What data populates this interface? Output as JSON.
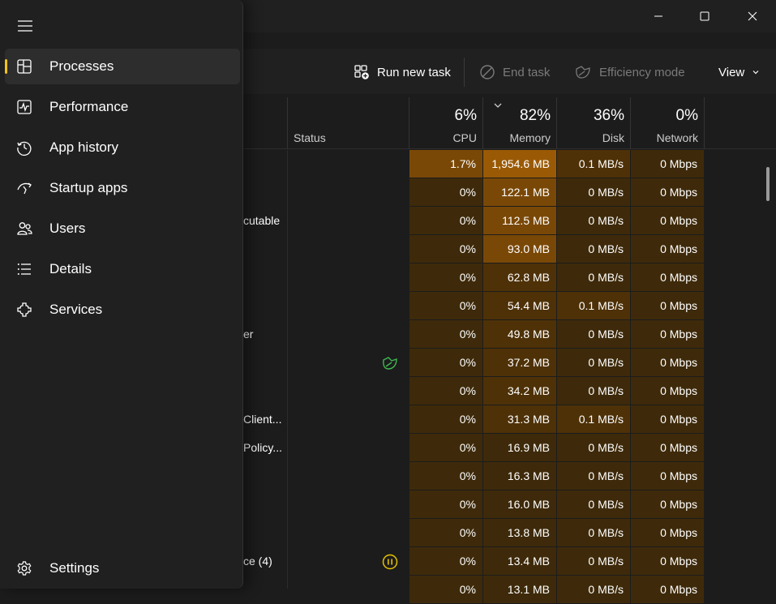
{
  "toolbar": {
    "run_new_task": "Run new task",
    "end_task": "End task",
    "efficiency_mode": "Efficiency mode",
    "view": "View"
  },
  "header": {
    "status": "Status",
    "cpu": {
      "pct": "6%",
      "label": "CPU"
    },
    "memory": {
      "pct": "82%",
      "label": "Memory"
    },
    "disk": {
      "pct": "36%",
      "label": "Disk"
    },
    "network": {
      "pct": "0%",
      "label": "Network"
    }
  },
  "rows": [
    {
      "name": "",
      "cpu": "1.7%",
      "mem": "1,954.6 MB",
      "disk": "0.1 MB/s",
      "net": "0 Mbps",
      "status": ""
    },
    {
      "name": "",
      "cpu": "0%",
      "mem": "122.1 MB",
      "disk": "0 MB/s",
      "net": "0 Mbps",
      "status": ""
    },
    {
      "name": "cutable",
      "cpu": "0%",
      "mem": "112.5 MB",
      "disk": "0 MB/s",
      "net": "0 Mbps",
      "status": ""
    },
    {
      "name": "",
      "cpu": "0%",
      "mem": "93.0 MB",
      "disk": "0 MB/s",
      "net": "0 Mbps",
      "status": ""
    },
    {
      "name": "",
      "cpu": "0%",
      "mem": "62.8 MB",
      "disk": "0 MB/s",
      "net": "0 Mbps",
      "status": ""
    },
    {
      "name": "",
      "cpu": "0%",
      "mem": "54.4 MB",
      "disk": "0.1 MB/s",
      "net": "0 Mbps",
      "status": ""
    },
    {
      "name": "er",
      "cpu": "0%",
      "mem": "49.8 MB",
      "disk": "0 MB/s",
      "net": "0 Mbps",
      "status": ""
    },
    {
      "name": "",
      "cpu": "0%",
      "mem": "37.2 MB",
      "disk": "0 MB/s",
      "net": "0 Mbps",
      "status": "efficiency"
    },
    {
      "name": "",
      "cpu": "0%",
      "mem": "34.2 MB",
      "disk": "0 MB/s",
      "net": "0 Mbps",
      "status": ""
    },
    {
      "name": "Client...",
      "cpu": "0%",
      "mem": "31.3 MB",
      "disk": "0.1 MB/s",
      "net": "0 Mbps",
      "status": ""
    },
    {
      "name": "Policy...",
      "cpu": "0%",
      "mem": "16.9 MB",
      "disk": "0 MB/s",
      "net": "0 Mbps",
      "status": ""
    },
    {
      "name": "",
      "cpu": "0%",
      "mem": "16.3 MB",
      "disk": "0 MB/s",
      "net": "0 Mbps",
      "status": ""
    },
    {
      "name": "",
      "cpu": "0%",
      "mem": "16.0 MB",
      "disk": "0 MB/s",
      "net": "0 Mbps",
      "status": ""
    },
    {
      "name": "",
      "cpu": "0%",
      "mem": "13.8 MB",
      "disk": "0 MB/s",
      "net": "0 Mbps",
      "status": ""
    },
    {
      "name": "ce (4)",
      "cpu": "0%",
      "mem": "13.4 MB",
      "disk": "0 MB/s",
      "net": "0 Mbps",
      "status": "suspended"
    },
    {
      "name": "",
      "cpu": "0%",
      "mem": "13.1 MB",
      "disk": "0 MB/s",
      "net": "0 Mbps",
      "status": ""
    }
  ],
  "sidebar": {
    "items": [
      {
        "label": "Processes",
        "icon": "processes-icon",
        "active": true
      },
      {
        "label": "Performance",
        "icon": "performance-icon",
        "active": false
      },
      {
        "label": "App history",
        "icon": "app-history-icon",
        "active": false
      },
      {
        "label": "Startup apps",
        "icon": "startup-apps-icon",
        "active": false
      },
      {
        "label": "Users",
        "icon": "users-icon",
        "active": false
      },
      {
        "label": "Details",
        "icon": "details-icon",
        "active": false
      },
      {
        "label": "Services",
        "icon": "services-icon",
        "active": false
      }
    ],
    "settings": "Settings"
  },
  "colors": {
    "accent": "#f0c419",
    "heat_high": "#9a5a05",
    "heat_mid": "#7a4806",
    "heat_low": "#4e3107",
    "heat_min": "#3e2a0a",
    "efficiency_green": "#3fb950",
    "suspended_yellow": "#e6c200"
  }
}
